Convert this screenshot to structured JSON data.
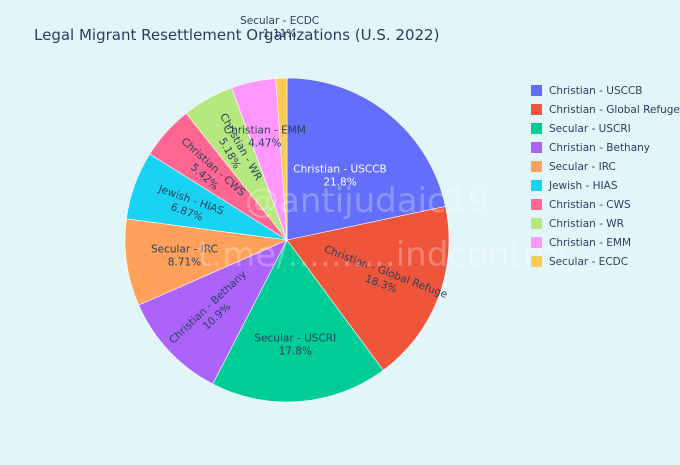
{
  "watermark": {
    "line1": "@antijudaic19",
    "line2": "t.me/..........indcontrol"
  },
  "chart_data": {
    "type": "pie",
    "title": "Legal Migrant Resettlement Organizations (U.S. 2022)",
    "legend_position": "right",
    "slices": [
      {
        "label": "Christian - USCCB",
        "value": 21.8,
        "text": "21.8%",
        "color": "#636efa"
      },
      {
        "label": "Christian - Global Refuge",
        "value": 18.3,
        "text": "18.3%",
        "color": "#ef553b"
      },
      {
        "label": "Secular - USCRI",
        "value": 17.8,
        "text": "17.8%",
        "color": "#00cc96"
      },
      {
        "label": "Christian - Bethany",
        "value": 10.9,
        "text": "10.9%",
        "color": "#ab63fa"
      },
      {
        "label": "Secular - IRC",
        "value": 8.71,
        "text": "8.71%",
        "color": "#ffa15a"
      },
      {
        "label": "Jewish - HIAS",
        "value": 6.87,
        "text": "6.87%",
        "color": "#19d3f3"
      },
      {
        "label": "Christian - CWS",
        "value": 5.42,
        "text": "5.42%",
        "color": "#ff6692"
      },
      {
        "label": "Christian - WR",
        "value": 5.18,
        "text": "5.18%",
        "color": "#b6e880"
      },
      {
        "label": "Christian - EMM",
        "value": 4.47,
        "text": "4.47%",
        "color": "#ff97ff"
      },
      {
        "label": "Secular - ECDC",
        "value": 1.11,
        "text": "1.11%",
        "color": "#fecb52"
      }
    ]
  }
}
